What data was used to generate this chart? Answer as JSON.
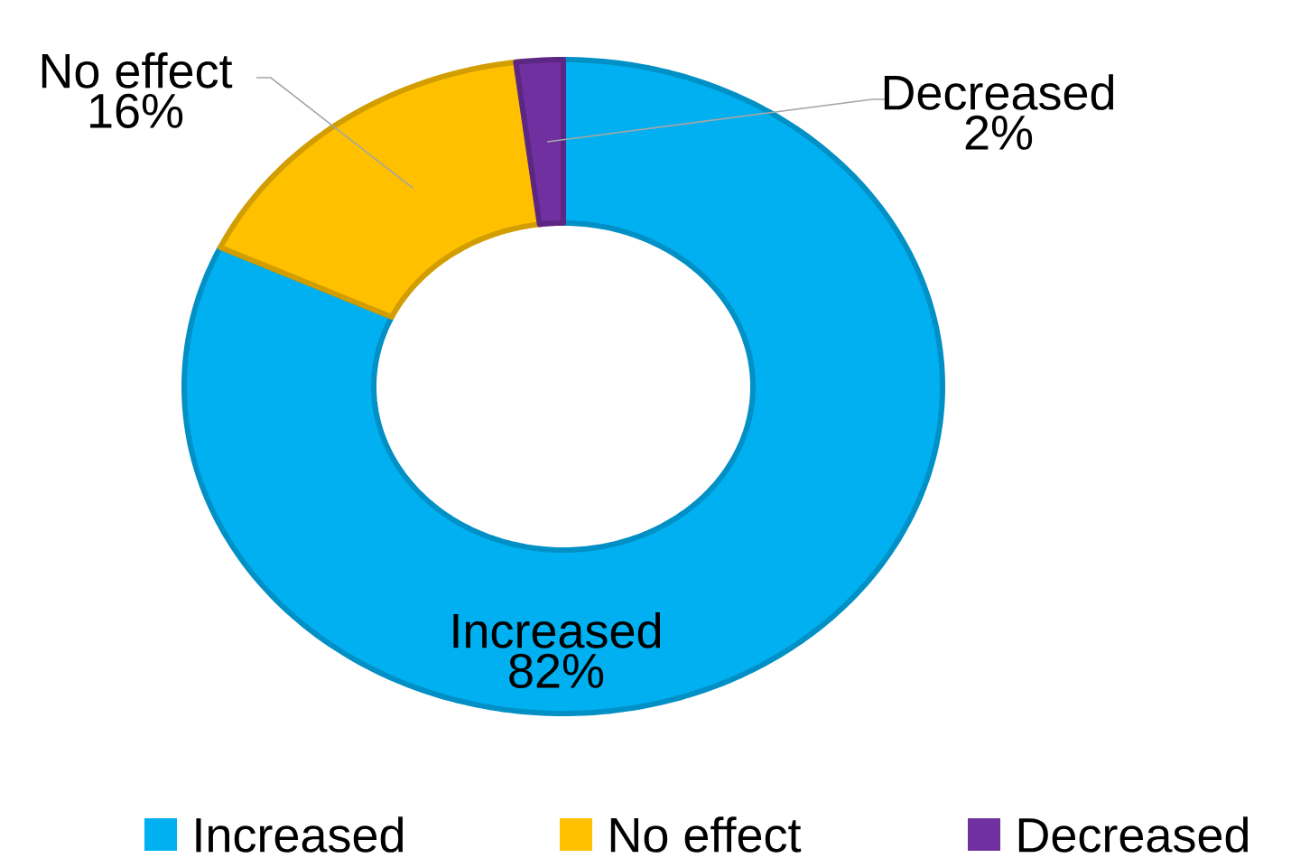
{
  "chart_data": {
    "type": "donut",
    "categories": [
      "Increased",
      "No effect",
      "Decreased"
    ],
    "values": [
      82,
      16,
      2
    ],
    "value_labels": [
      "82%",
      "16%",
      "2%"
    ],
    "colors": [
      "#00b0f0",
      "#ffc000",
      "#7030a0"
    ],
    "legend": "bottom"
  }
}
